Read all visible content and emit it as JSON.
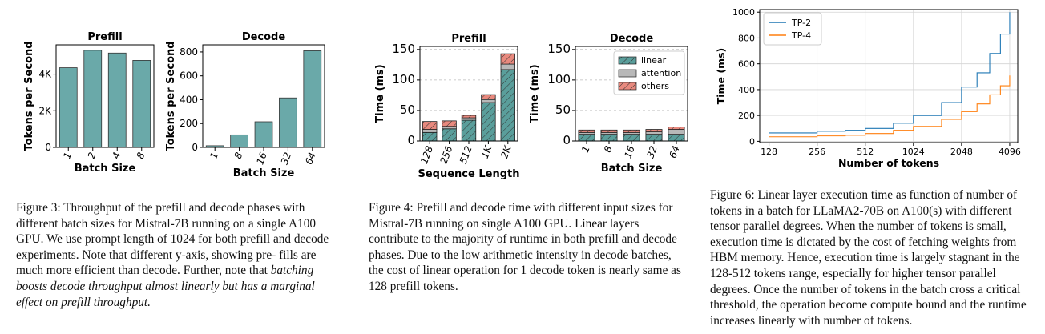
{
  "figures": {
    "fig3": {
      "caption_lead": "Figure 3: Throughput of the prefill and decode phases with different batch sizes for Mistral-7B running on a single A100 GPU. We use prompt length of 1024 for both prefill and decode experiments. Note that different y-axis, showing pre- fills are much more efficient than decode. Further, note that ",
      "caption_emph": "batching boosts decode throughput almost linearly but has a marginal effect on prefill throughput."
    },
    "fig4": {
      "caption": "Figure 4: Prefill and decode time with different input sizes for Mistral-7B running on single A100 GPU. Linear layers contribute to the majority of runtime in both prefill and decode phases. Due to the low arithmetic intensity in decode batches, the cost of linear operation for 1 decode token is nearly same as 128 prefill tokens."
    },
    "fig6": {
      "caption": "Figure 6: Linear layer execution time as function of number of tokens in a batch for LLaMA2-70B on A100(s) with different tensor parallel degrees. When the number of tokens is small, execution time is dictated by the cost of fetching weights from HBM memory. Hence, execution time is largely stagnant in the 128-512 tokens range, especially for higher tensor parallel degrees. Once the number of tokens in the batch cross a critical threshold, the operation become compute bound and the runtime increases linearly with number of tokens."
    }
  },
  "colors": {
    "bar_teal": "#6aa9a9",
    "linear": "#5a9e9b",
    "attention": "#b8b8b8",
    "others": "#e8897e",
    "tp2": "#1f77b4",
    "tp4": "#ff7f0e"
  },
  "chart_data": [
    {
      "id": "fig3-prefill",
      "type": "bar",
      "title": "Prefill",
      "xlabel": "Batch Size",
      "ylabel": "Tokens per Second",
      "categories": [
        "1",
        "2",
        "4",
        "8"
      ],
      "values": [
        4350,
        5300,
        5150,
        4750
      ],
      "yticks": [
        0,
        2000,
        4000
      ],
      "ytick_labels": [
        "0",
        "2K",
        "4K"
      ],
      "ylim": [
        0,
        5600
      ]
    },
    {
      "id": "fig3-decode",
      "type": "bar",
      "title": "Decode",
      "xlabel": "Batch Size",
      "ylabel": "Tokens per Second",
      "categories": [
        "1",
        "8",
        "16",
        "32",
        "64"
      ],
      "values": [
        14,
        105,
        215,
        415,
        810
      ],
      "yticks": [
        0,
        200,
        400,
        600,
        800
      ],
      "ytick_labels": [
        "0",
        "200",
        "400",
        "600",
        "800"
      ],
      "ylim": [
        0,
        860
      ]
    },
    {
      "id": "fig4-prefill",
      "type": "bar",
      "title": "Prefill",
      "xlabel": "Sequence Length",
      "ylabel": "Time (ms)",
      "categories": [
        "128",
        "256",
        "512",
        "1K",
        "2K"
      ],
      "series": [
        {
          "name": "linear",
          "values": [
            14,
            20,
            34,
            63,
            117
          ]
        },
        {
          "name": "attention",
          "values": [
            5,
            4,
            4,
            5,
            9
          ]
        },
        {
          "name": "others",
          "values": [
            13,
            9,
            4,
            8,
            17
          ]
        }
      ],
      "yticks": [
        0,
        50,
        100,
        150
      ],
      "ylim": [
        0,
        155
      ]
    },
    {
      "id": "fig4-decode",
      "type": "bar",
      "title": "Decode",
      "xlabel": "Batch Size",
      "ylabel": "Time (ms)",
      "categories": [
        "1",
        "8",
        "16",
        "32",
        "64"
      ],
      "series": [
        {
          "name": "linear",
          "values": [
            11,
            11,
            11,
            11,
            11
          ]
        },
        {
          "name": "attention",
          "values": [
            3,
            3,
            3,
            4,
            8
          ]
        },
        {
          "name": "others",
          "values": [
            4,
            4,
            4,
            4,
            4
          ]
        }
      ],
      "yticks": [
        0,
        50,
        100,
        150
      ],
      "ylim": [
        0,
        155
      ],
      "legend": [
        "linear",
        "attention",
        "others"
      ],
      "legend_position": "top-right"
    },
    {
      "id": "fig6",
      "type": "line",
      "xlabel": "Number of tokens",
      "ylabel": "Time (ms)",
      "x_scale": "log2",
      "xticks": [
        128,
        256,
        512,
        1024,
        2048,
        4096
      ],
      "yticks": [
        0,
        200,
        400,
        600,
        800,
        1000
      ],
      "xlim": [
        112,
        4600
      ],
      "ylim": [
        -10,
        1020
      ],
      "grid": true,
      "legend_position": "top-left",
      "series": [
        {
          "name": "TP-2",
          "x": [
            128,
            256,
            384,
            512,
            768,
            1024,
            1536,
            2048,
            2560,
            3072,
            3584,
            4096
          ],
          "y": [
            65,
            78,
            85,
            100,
            140,
            200,
            300,
            420,
            530,
            680,
            830,
            1000
          ]
        },
        {
          "name": "TP-4",
          "x": [
            128,
            256,
            384,
            512,
            768,
            1024,
            1536,
            2048,
            2560,
            3072,
            3584,
            4096
          ],
          "y": [
            35,
            42,
            47,
            60,
            85,
            115,
            170,
            230,
            290,
            360,
            430,
            510
          ]
        }
      ]
    }
  ]
}
